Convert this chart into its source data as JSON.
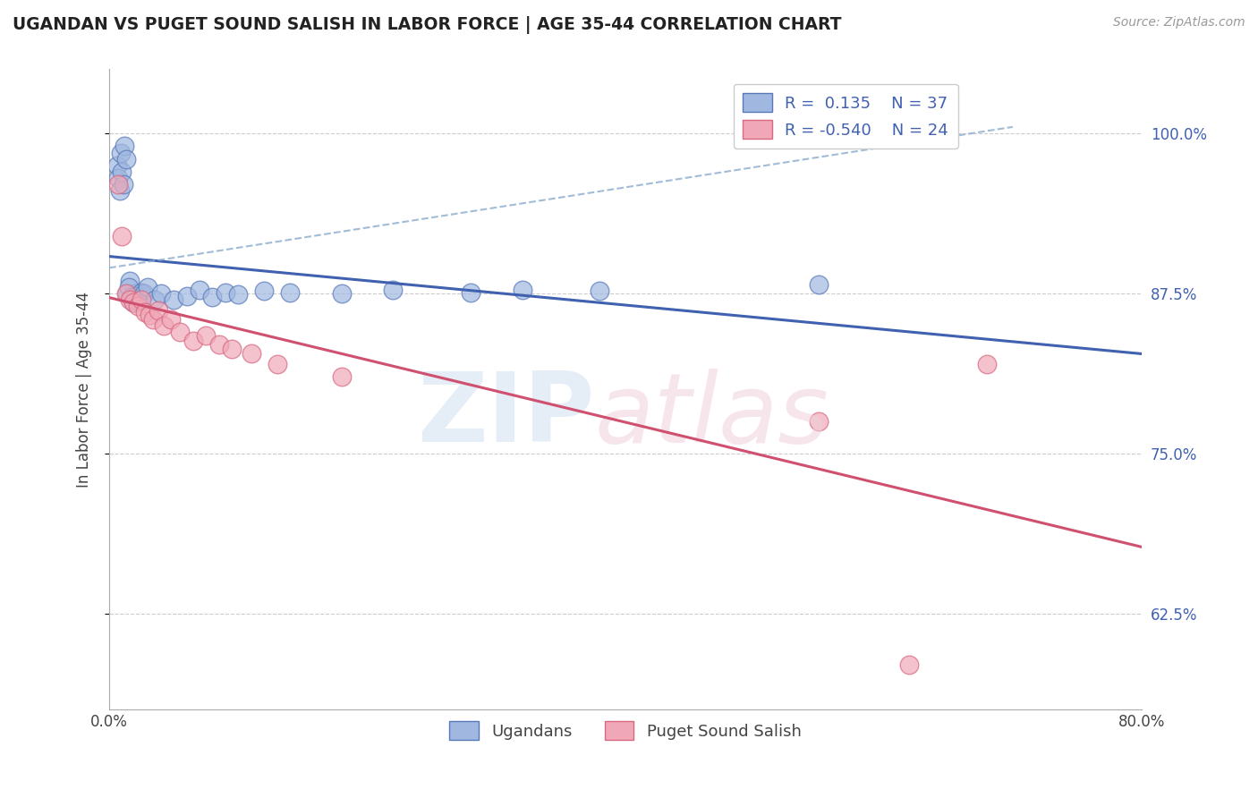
{
  "title": "UGANDAN VS PUGET SOUND SALISH IN LABOR FORCE | AGE 35-44 CORRELATION CHART",
  "source": "Source: ZipAtlas.com",
  "ylabel": "In Labor Force | Age 35-44",
  "xlim": [
    0.0,
    0.8
  ],
  "ylim": [
    0.55,
    1.05
  ],
  "xtick_positions": [
    0.0,
    0.2,
    0.4,
    0.6,
    0.8
  ],
  "xtick_labels": [
    "0.0%",
    "",
    "",
    "",
    "80.0%"
  ],
  "ytick_positions": [
    0.625,
    0.75,
    0.875,
    1.0
  ],
  "ytick_labels": [
    "62.5%",
    "75.0%",
    "87.5%",
    "100.0%"
  ],
  "blue_face_color": "#a0b8e0",
  "blue_edge_color": "#5878b8",
  "pink_face_color": "#f0a8b8",
  "pink_edge_color": "#d86880",
  "blue_line_color": "#4060b0",
  "pink_line_color": "#d05070",
  "blue_dash_color": "#8aabcc",
  "legend_label1": "Ugandans",
  "legend_label2": "Puget Sound Salish",
  "r1": 0.135,
  "n1": 37,
  "r2": -0.54,
  "n2": 24,
  "blue_points_x": [
    0.006,
    0.009,
    0.012,
    0.007,
    0.01,
    0.013,
    0.008,
    0.011,
    0.014,
    0.016,
    0.018,
    0.02,
    0.015,
    0.017,
    0.019,
    0.021,
    0.023,
    0.025,
    0.022,
    0.027,
    0.03,
    0.035,
    0.04,
    0.05,
    0.06,
    0.07,
    0.08,
    0.09,
    0.1,
    0.12,
    0.14,
    0.18,
    0.22,
    0.28,
    0.32,
    0.38,
    0.55
  ],
  "blue_points_y": [
    0.975,
    0.985,
    0.99,
    0.965,
    0.97,
    0.98,
    0.955,
    0.96,
    0.875,
    0.885,
    0.87,
    0.875,
    0.88,
    0.872,
    0.868,
    0.873,
    0.869,
    0.876,
    0.87,
    0.875,
    0.88,
    0.87,
    0.875,
    0.87,
    0.873,
    0.878,
    0.872,
    0.876,
    0.874,
    0.877,
    0.876,
    0.875,
    0.878,
    0.876,
    0.878,
    0.877,
    0.882
  ],
  "pink_points_x": [
    0.007,
    0.01,
    0.013,
    0.016,
    0.019,
    0.022,
    0.025,
    0.028,
    0.031,
    0.034,
    0.038,
    0.042,
    0.048,
    0.055,
    0.065,
    0.075,
    0.085,
    0.095,
    0.11,
    0.13,
    0.18,
    0.55,
    0.62,
    0.68
  ],
  "pink_points_y": [
    0.96,
    0.92,
    0.875,
    0.87,
    0.868,
    0.865,
    0.87,
    0.86,
    0.858,
    0.855,
    0.862,
    0.85,
    0.855,
    0.845,
    0.838,
    0.842,
    0.835,
    0.832,
    0.828,
    0.82,
    0.81,
    0.775,
    0.585,
    0.82
  ]
}
